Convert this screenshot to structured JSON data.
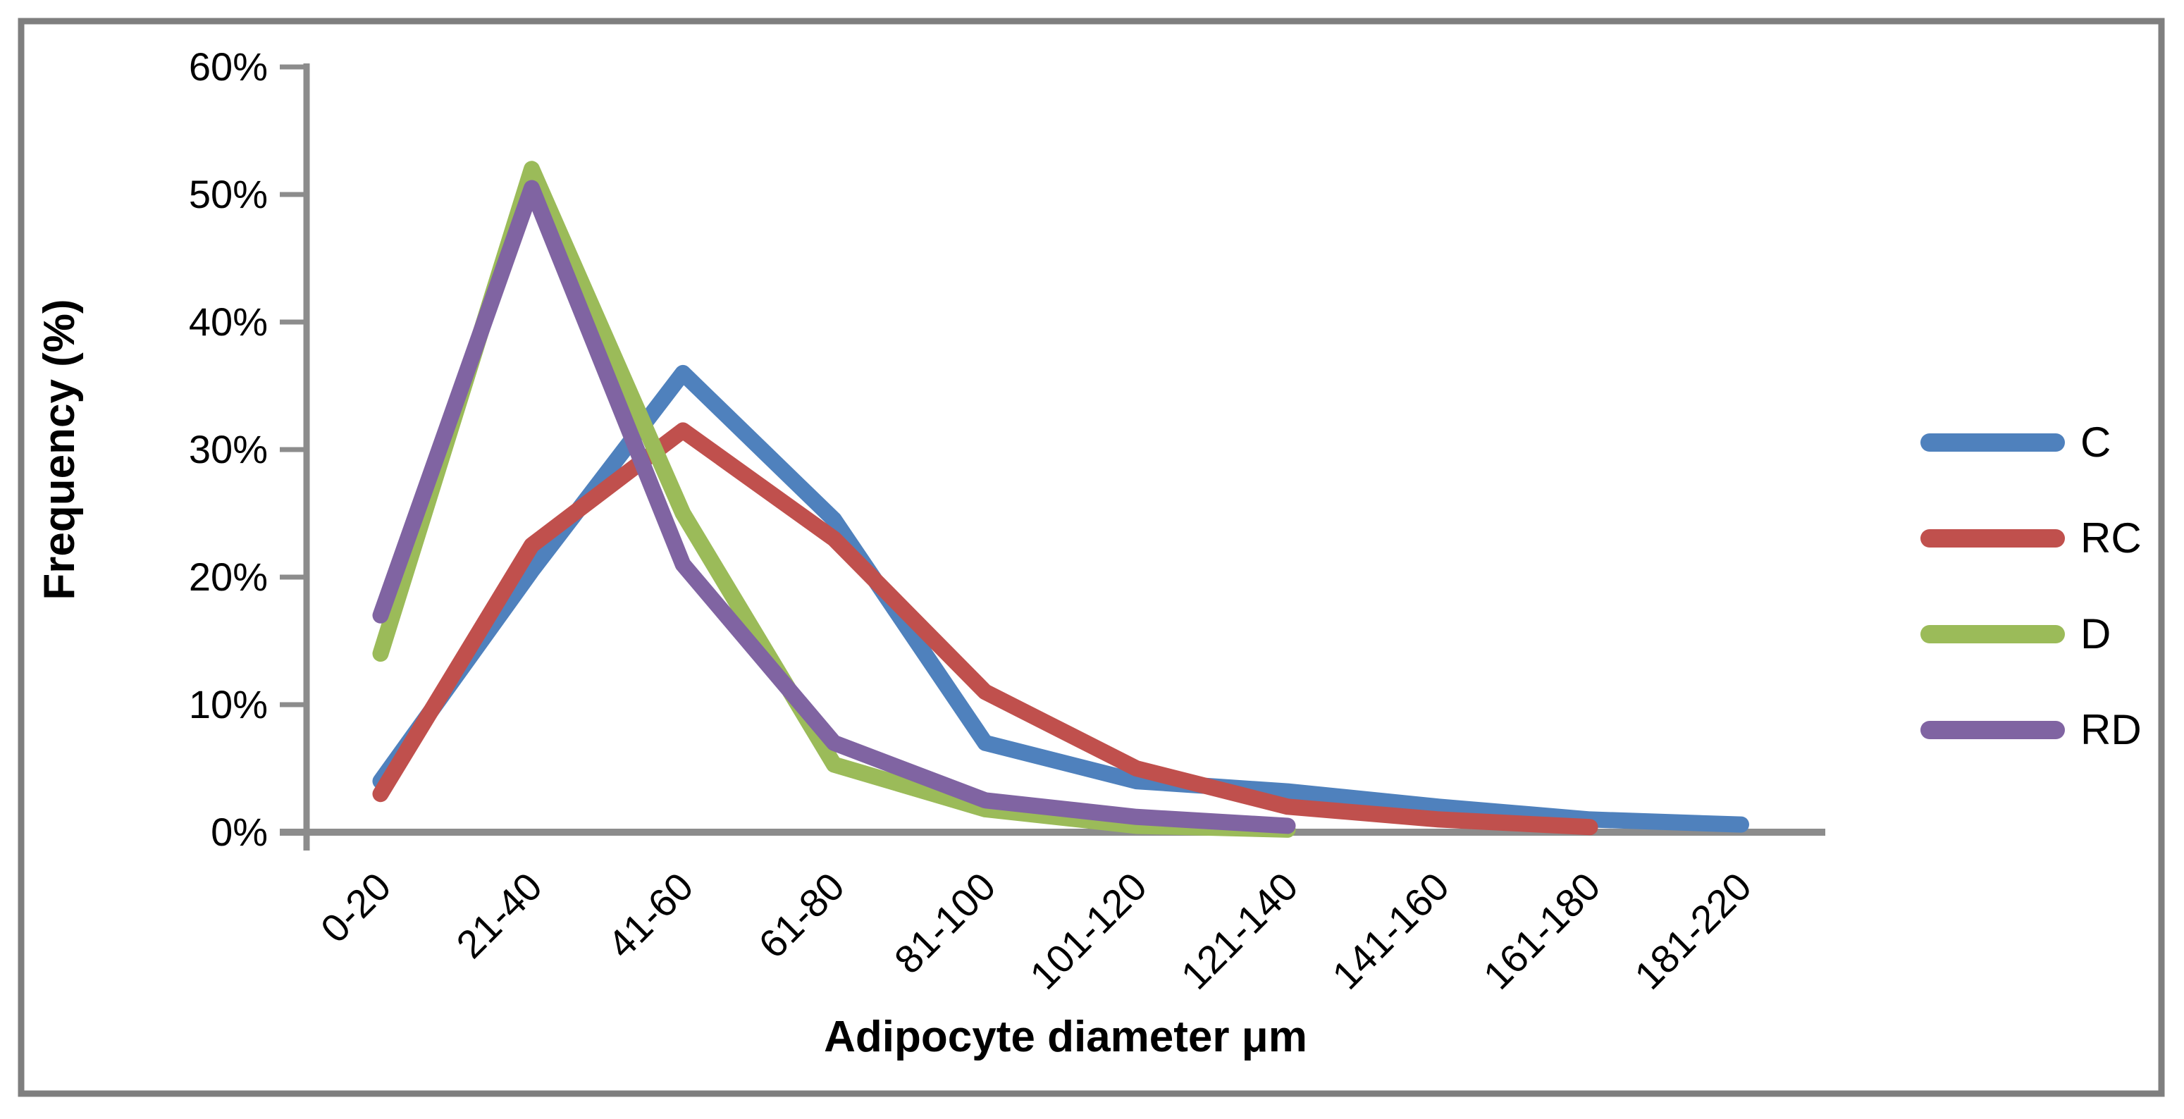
{
  "figure": {
    "border_color": "#7f7f7f",
    "background": "#ffffff",
    "axis_color": "#8c8c8c"
  },
  "chart_data": {
    "type": "line",
    "title": "",
    "xlabel": "Adipocyte diameter μm",
    "ylabel": "Frequency (%)",
    "categories": [
      "0-20",
      "21-40",
      "41-60",
      "61-80",
      "81-100",
      "101-120",
      "121-140",
      "141-160",
      "161-180",
      "181-220"
    ],
    "y_ticks": [
      "0%",
      "10%",
      "20%",
      "30%",
      "40%",
      "50%",
      "60%"
    ],
    "ylim": [
      0,
      60
    ],
    "y_tick_step": 10,
    "grid": false,
    "legend_position": "right",
    "series": [
      {
        "name": "C",
        "color": "#4F81BD",
        "values": [
          4,
          20.5,
          36,
          24.5,
          7,
          4,
          3.2,
          2,
          1,
          0.6
        ]
      },
      {
        "name": "RC",
        "color": "#C0504D",
        "values": [
          3,
          22.5,
          31.5,
          23,
          11,
          5,
          2,
          1,
          0.4,
          null
        ]
      },
      {
        "name": "D",
        "color": "#9BBB59",
        "values": [
          14,
          52,
          25,
          5.3,
          1.8,
          0.5,
          0.2,
          null,
          null,
          null
        ]
      },
      {
        "name": "RD",
        "color": "#8064A2",
        "values": [
          17,
          50.5,
          21,
          7,
          2.5,
          1.2,
          0.5,
          null,
          null,
          null
        ]
      }
    ]
  }
}
